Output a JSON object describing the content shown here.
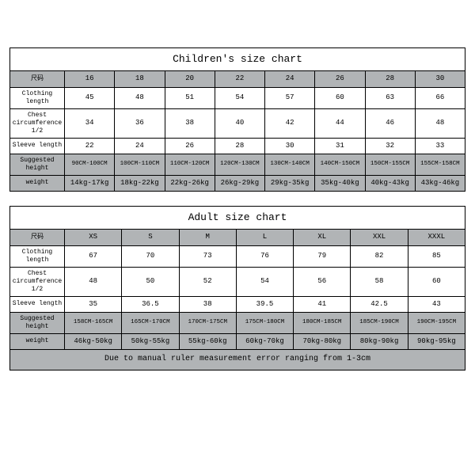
{
  "children": {
    "title": "Children's size chart",
    "header_label": "尺码",
    "sizes": [
      "16",
      "18",
      "20",
      "22",
      "24",
      "26",
      "28",
      "30"
    ],
    "rows": [
      {
        "label": "Clothing length",
        "vals": [
          "45",
          "48",
          "51",
          "54",
          "57",
          "60",
          "63",
          "66"
        ]
      },
      {
        "label": "Chest circumference 1/2",
        "vals": [
          "34",
          "36",
          "38",
          "40",
          "42",
          "44",
          "46",
          "48"
        ]
      },
      {
        "label": "Sleeve length",
        "vals": [
          "22",
          "24",
          "26",
          "28",
          "30",
          "31",
          "32",
          "33"
        ]
      },
      {
        "label": "Suggested height",
        "vals": [
          "90CM-100CM",
          "100CM-110CM",
          "110CM-120CM",
          "120CM-130CM",
          "130CM-140CM",
          "140CM-150CM",
          "150CM-155CM",
          "155CM-158CM"
        ],
        "small": true
      },
      {
        "label": "weight",
        "vals": [
          "14kg-17kg",
          "18kg-22kg",
          "22kg-26kg",
          "26kg-29kg",
          "29kg-35kg",
          "35kg-40kg",
          "40kg-43kg",
          "43kg-46kg"
        ]
      }
    ]
  },
  "adult": {
    "title": "Adult size chart",
    "header_label": "尺码",
    "sizes": [
      "XS",
      "S",
      "M",
      "L",
      "XL",
      "XXL",
      "XXXL"
    ],
    "rows": [
      {
        "label": "Clothing length",
        "vals": [
          "67",
          "70",
          "73",
          "76",
          "79",
          "82",
          "85"
        ]
      },
      {
        "label": "Chest circumference 1/2",
        "vals": [
          "48",
          "50",
          "52",
          "54",
          "56",
          "58",
          "60"
        ]
      },
      {
        "label": "Sleeve length",
        "vals": [
          "35",
          "36.5",
          "38",
          "39.5",
          "41",
          "42.5",
          "43"
        ]
      },
      {
        "label": "Suggested height",
        "vals": [
          "158CM-165CM",
          "165CM-170CM",
          "170CM-175CM",
          "175CM-180CM",
          "180CM-185CM",
          "185CM-190CM",
          "190CM-195CM"
        ],
        "small": true
      },
      {
        "label": "weight",
        "vals": [
          "46kg-50kg",
          "50kg-55kg",
          "55kg-60kg",
          "60kg-70kg",
          "70kg-80kg",
          "80kg-90kg",
          "90kg-95kg"
        ]
      }
    ],
    "footnote": "Due to manual ruler measurement error ranging from 1-3cm"
  }
}
